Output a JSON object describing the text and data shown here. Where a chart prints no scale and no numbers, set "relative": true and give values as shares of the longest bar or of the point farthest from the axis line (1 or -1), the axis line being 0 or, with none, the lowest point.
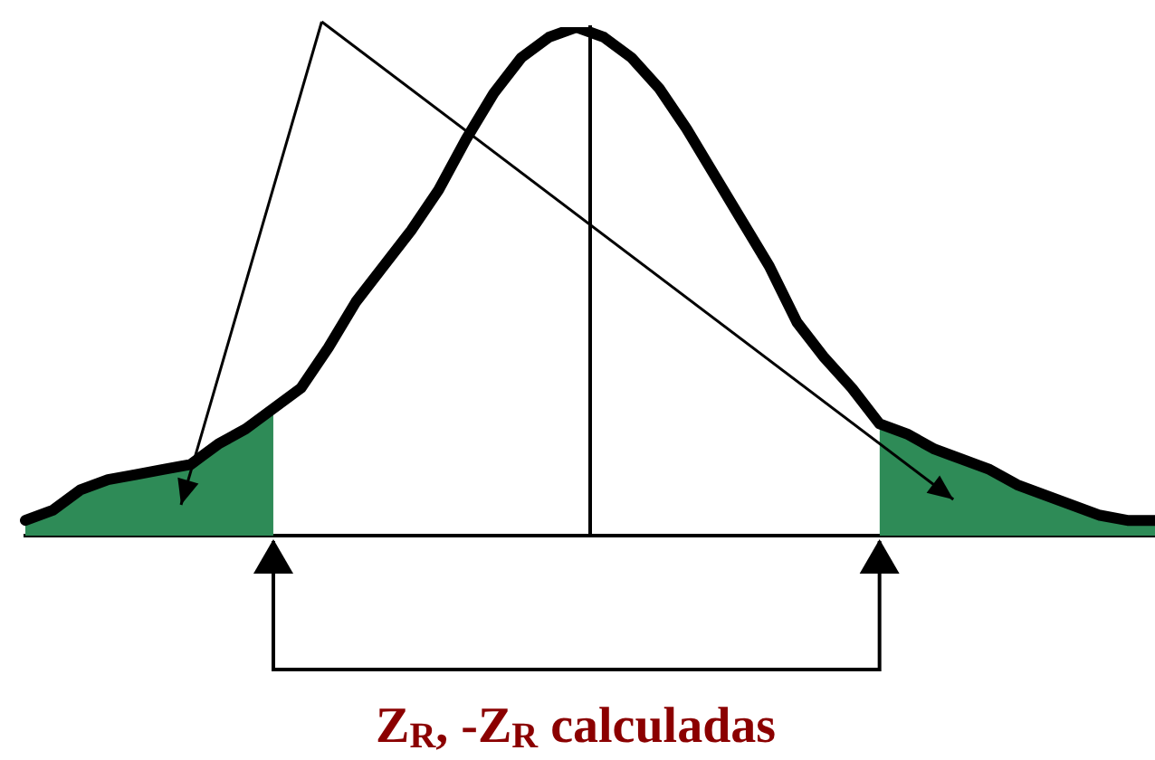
{
  "chart_data": {
    "type": "line",
    "relative": true,
    "categories": [
      null,
      null,
      null,
      null,
      null,
      null,
      null,
      null,
      null,
      null,
      null,
      null,
      null,
      null,
      null,
      null,
      null,
      null,
      null,
      null,
      null,
      null,
      null,
      null,
      null,
      null,
      null,
      null,
      null,
      null,
      null,
      null,
      null,
      null,
      null,
      null,
      null,
      null,
      null,
      null,
      null,
      null
    ],
    "series": [
      {
        "type": "line",
        "color": "#000000",
        "values": [
          0.03,
          0.05,
          0.09,
          0.11,
          0.12,
          0.13,
          0.14,
          0.18,
          0.21,
          0.25,
          0.29,
          0.37,
          0.46,
          0.53,
          0.6,
          0.68,
          0.78,
          0.87,
          0.94,
          0.98,
          1,
          0.98,
          0.94,
          0.88,
          0.8,
          0.71,
          0.62,
          0.53,
          0.42,
          0.35,
          0.29,
          0.22,
          0.2,
          0.17,
          0.15,
          0.13,
          0.1,
          0.08,
          0.06,
          0.04,
          0.03,
          0.03
        ]
      },
      {
        "type": "area",
        "color": "#2e8b57",
        "values": [
          0.03,
          0.05,
          0.09,
          0.11,
          0.12,
          0.13,
          0.14,
          0.18,
          0.21,
          0.25,
          null,
          null,
          null,
          null,
          null,
          null,
          null,
          null,
          null,
          null,
          null,
          null,
          null,
          null,
          null,
          null,
          null,
          null,
          null,
          null,
          null,
          0.22,
          0.2,
          0.17,
          0.15,
          0.13,
          0.1,
          0.08,
          0.06,
          0.04,
          0.03,
          0.03
        ]
      }
    ],
    "annotations": [
      "Z$_{R}$, -Z$_{R}$ calculadas"
    ]
  }
}
